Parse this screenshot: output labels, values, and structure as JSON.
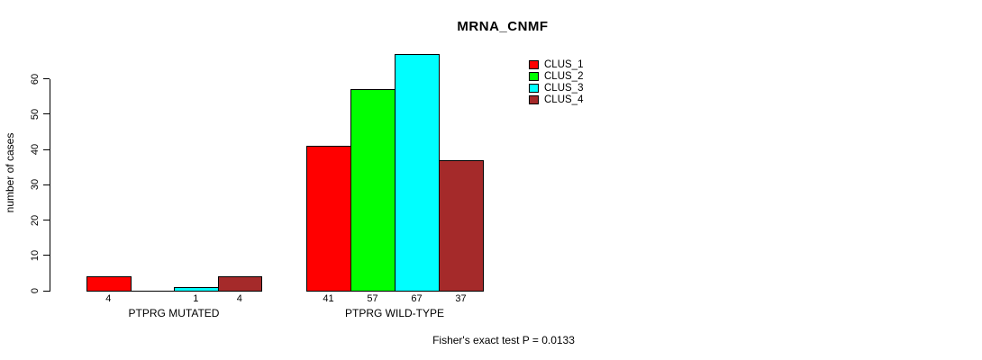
{
  "title": "MRNA_CNMF",
  "footer": "Fisher's exact test P = 0.0133",
  "chart_data": {
    "type": "bar",
    "title": "MRNA_CNMF",
    "xlabel": "",
    "ylabel": "number of cases",
    "ylim": [
      0,
      60
    ],
    "yticks": [
      0,
      10,
      20,
      30,
      40,
      50,
      60
    ],
    "grid": false,
    "legend_position": "top-right",
    "legend": [
      {
        "name": "CLUS_1",
        "color": "#ff0000"
      },
      {
        "name": "CLUS_2",
        "color": "#00ff00"
      },
      {
        "name": "CLUS_3",
        "color": "#00ffff"
      },
      {
        "name": "CLUS_4",
        "color": "#a52a2a"
      }
    ],
    "categories": [
      "PTPRG MUTATED",
      "PTPRG WILD-TYPE"
    ],
    "series": [
      {
        "name": "CLUS_1",
        "values": [
          4,
          41
        ]
      },
      {
        "name": "CLUS_2",
        "values": [
          0,
          57
        ]
      },
      {
        "name": "CLUS_3",
        "values": [
          1,
          67
        ]
      },
      {
        "name": "CLUS_4",
        "values": [
          4,
          37
        ]
      }
    ],
    "groups": [
      {
        "label": "PTPRG MUTATED",
        "values": [
          4,
          0,
          1,
          4
        ],
        "bar_labels": [
          "4",
          "",
          "1",
          "4"
        ]
      },
      {
        "label": "PTPRG WILD-TYPE",
        "values": [
          41,
          57,
          67,
          37
        ],
        "bar_labels": [
          "41",
          "57",
          "67",
          "37"
        ]
      }
    ],
    "annotation": "Fisher's exact test P = 0.0133"
  }
}
